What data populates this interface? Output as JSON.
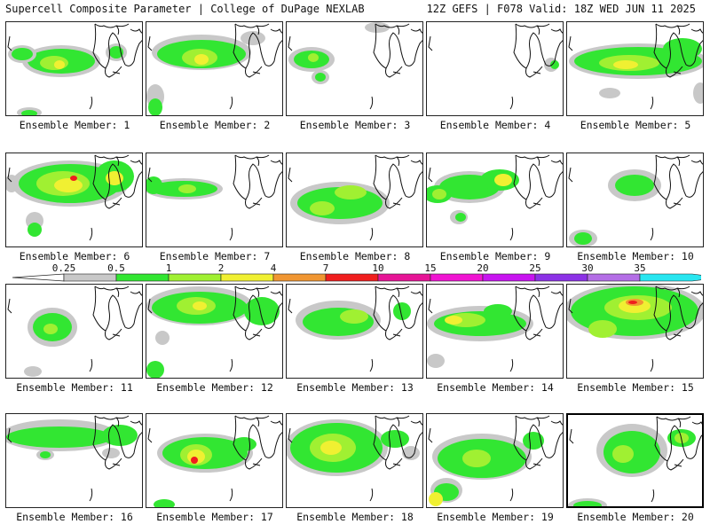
{
  "header": {
    "title": "Supercell Composite Parameter | College of DuPage NEXLAB",
    "run_info": "12Z GEFS | F078 Valid: 18Z WED JUN 11 2025"
  },
  "members": [
    {
      "label": "Ensemble Member: 1"
    },
    {
      "label": "Ensemble Member: 2"
    },
    {
      "label": "Ensemble Member: 3"
    },
    {
      "label": "Ensemble Member: 4"
    },
    {
      "label": "Ensemble Member: 5"
    },
    {
      "label": "Ensemble Member: 6"
    },
    {
      "label": "Ensemble Member: 7"
    },
    {
      "label": "Ensemble Member: 8"
    },
    {
      "label": "Ensemble Member: 9"
    },
    {
      "label": "Ensemble Member: 10"
    },
    {
      "label": "Ensemble Member: 11"
    },
    {
      "label": "Ensemble Member: 12"
    },
    {
      "label": "Ensemble Member: 13"
    },
    {
      "label": "Ensemble Member: 14"
    },
    {
      "label": "Ensemble Member: 15"
    },
    {
      "label": "Ensemble Member: 16"
    },
    {
      "label": "Ensemble Member: 17"
    },
    {
      "label": "Ensemble Member: 18"
    },
    {
      "label": "Ensemble Member: 19"
    },
    {
      "label": "Ensemble Member: 20"
    }
  ],
  "legend": {
    "ticks": [
      "0.25",
      "0.5",
      "1",
      "2",
      "4",
      "7",
      "10",
      "15",
      "20",
      "25",
      "30",
      "35"
    ],
    "colors": [
      "#c8c8c8",
      "#32e632",
      "#a0f032",
      "#f0f032",
      "#f09632",
      "#f01e1e",
      "#e61496",
      "#f014d2",
      "#c814f0",
      "#8c32e6",
      "#b46ee6",
      "#28e6f0"
    ]
  },
  "colors": {
    "light_gray": "#c8c8c8",
    "green": "#32e632",
    "light_green": "#a0f032",
    "yellow": "#f0f032",
    "orange": "#f09632",
    "red": "#f01e1e",
    "map_outline": "#111111"
  }
}
